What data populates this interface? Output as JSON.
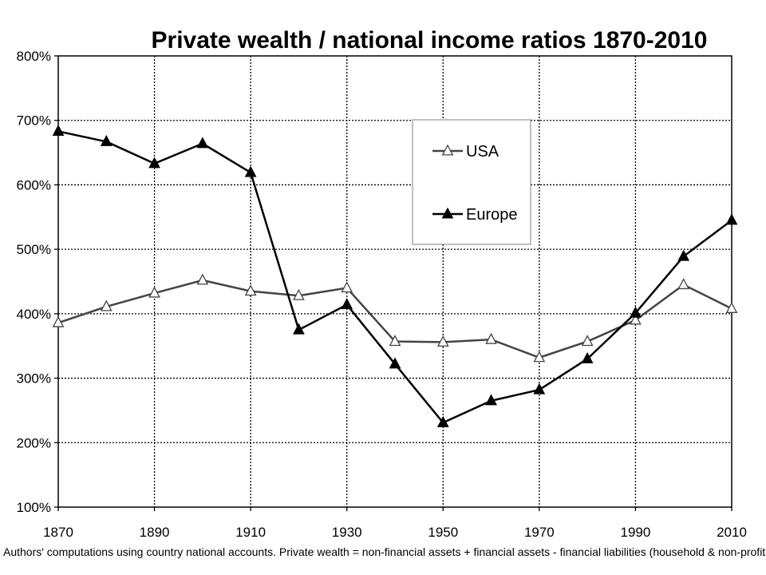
{
  "chart_data": {
    "type": "line",
    "title": "Private wealth / national income ratios 1870-2010",
    "xlabel": "",
    "ylabel": "",
    "x": [
      1870,
      1880,
      1890,
      1900,
      1910,
      1920,
      1930,
      1940,
      1950,
      1960,
      1970,
      1980,
      1990,
      2000,
      2010
    ],
    "x_ticks": [
      "1870",
      "1890",
      "1910",
      "1930",
      "1950",
      "1970",
      "1990",
      "2010"
    ],
    "y_ticks": [
      "100%",
      "200%",
      "300%",
      "400%",
      "500%",
      "600%",
      "700%",
      "800%"
    ],
    "xlim": [
      1870,
      2010
    ],
    "ylim": [
      100,
      800
    ],
    "grid": true,
    "legend_position": "top-right",
    "series": [
      {
        "name": "USA",
        "marker": "open-triangle",
        "color": "#444444",
        "values": [
          386,
          411,
          432,
          452,
          435,
          428,
          440,
          357,
          356,
          360,
          332,
          357,
          390,
          445,
          408
        ]
      },
      {
        "name": "Europe",
        "marker": "filled-triangle",
        "color": "#000000",
        "values": [
          683,
          667,
          633,
          664,
          619,
          375,
          414,
          322,
          231,
          265,
          282,
          330,
          401,
          489,
          545
        ]
      }
    ],
    "note": "Authors' computations using country national accounts. Private wealth = non-financial assets + financial assets - financial liabilities (household & non-profit sectors)"
  }
}
